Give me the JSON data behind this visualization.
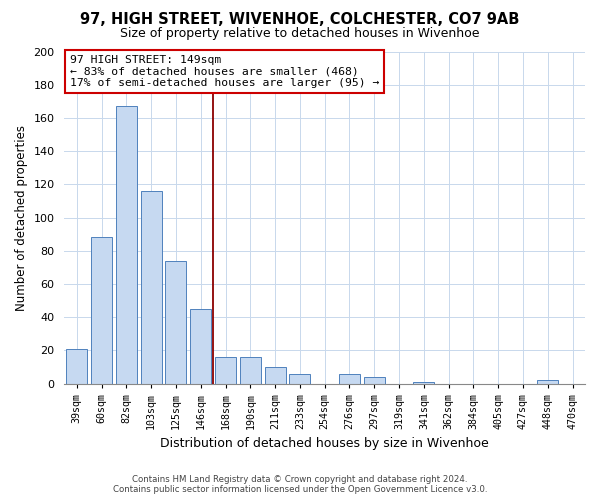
{
  "title": "97, HIGH STREET, WIVENHOE, COLCHESTER, CO7 9AB",
  "subtitle": "Size of property relative to detached houses in Wivenhoe",
  "xlabel": "Distribution of detached houses by size in Wivenhoe",
  "ylabel": "Number of detached properties",
  "bar_labels": [
    "39sqm",
    "60sqm",
    "82sqm",
    "103sqm",
    "125sqm",
    "146sqm",
    "168sqm",
    "190sqm",
    "211sqm",
    "233sqm",
    "254sqm",
    "276sqm",
    "297sqm",
    "319sqm",
    "341sqm",
    "362sqm",
    "384sqm",
    "405sqm",
    "427sqm",
    "448sqm",
    "470sqm"
  ],
  "bar_values": [
    21,
    88,
    167,
    116,
    74,
    45,
    16,
    16,
    10,
    6,
    0,
    6,
    4,
    0,
    1,
    0,
    0,
    0,
    0,
    2,
    0
  ],
  "bar_color": "#c6d9f1",
  "bar_edge_color": "#4f81bd",
  "vline_x": 5.5,
  "vline_color": "#8b0000",
  "ylim": [
    0,
    200
  ],
  "yticks": [
    0,
    20,
    40,
    60,
    80,
    100,
    120,
    140,
    160,
    180,
    200
  ],
  "annotation_title": "97 HIGH STREET: 149sqm",
  "annotation_line1": "← 83% of detached houses are smaller (468)",
  "annotation_line2": "17% of semi-detached houses are larger (95) →",
  "annotation_box_color": "#ffffff",
  "annotation_box_edge": "#cc0000",
  "footer1": "Contains HM Land Registry data © Crown copyright and database right 2024.",
  "footer2": "Contains public sector information licensed under the Open Government Licence v3.0.",
  "bg_color": "#ffffff",
  "grid_color": "#c8d8ec"
}
